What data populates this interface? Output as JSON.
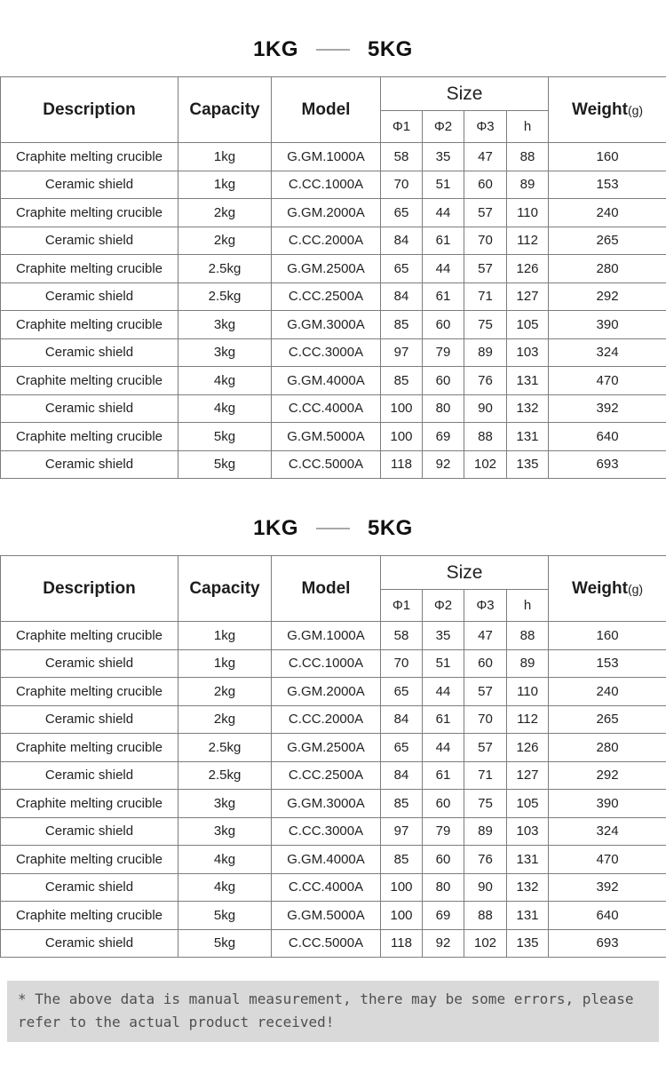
{
  "titles": {
    "range_start": "1KG",
    "range_end": "5KG"
  },
  "table": {
    "headers": {
      "description": "Description",
      "capacity": "Capacity",
      "model": "Model",
      "size": "Size",
      "weight": "Weight",
      "weight_unit": "(g)",
      "size_sub": [
        "Φ1",
        "Φ2",
        "Φ3",
        "h"
      ]
    },
    "column_names": [
      "cell-description",
      "cell-capacity",
      "cell-model",
      "cell-phi1",
      "cell-phi2",
      "cell-phi3",
      "cell-h",
      "cell-weight"
    ],
    "rows": [
      [
        "Craphite melting crucible",
        "1kg",
        "G.GM.1000A",
        "58",
        "35",
        "47",
        "88",
        "160"
      ],
      [
        "Ceramic shield",
        "1kg",
        "C.CC.1000A",
        "70",
        "51",
        "60",
        "89",
        "153"
      ],
      [
        "Craphite melting crucible",
        "2kg",
        "G.GM.2000A",
        "65",
        "44",
        "57",
        "110",
        "240"
      ],
      [
        "Ceramic shield",
        "2kg",
        "C.CC.2000A",
        "84",
        "61",
        "70",
        "112",
        "265"
      ],
      [
        "Craphite melting crucible",
        "2.5kg",
        "G.GM.2500A",
        "65",
        "44",
        "57",
        "126",
        "280"
      ],
      [
        "Ceramic shield",
        "2.5kg",
        "C.CC.2500A",
        "84",
        "61",
        "71",
        "127",
        "292"
      ],
      [
        "Craphite melting crucible",
        "3kg",
        "G.GM.3000A",
        "85",
        "60",
        "75",
        "105",
        "390"
      ],
      [
        "Ceramic shield",
        "3kg",
        "C.CC.3000A",
        "97",
        "79",
        "89",
        "103",
        "324"
      ],
      [
        "Craphite melting crucible",
        "4kg",
        "G.GM.4000A",
        "85",
        "60",
        "76",
        "131",
        "470"
      ],
      [
        "Ceramic shield",
        "4kg",
        "C.CC.4000A",
        "100",
        "80",
        "90",
        "132",
        "392"
      ],
      [
        "Craphite melting crucible",
        "5kg",
        "G.GM.5000A",
        "100",
        "69",
        "88",
        "131",
        "640"
      ],
      [
        "Ceramic shield",
        "5kg",
        "C.CC.5000A",
        "118",
        "92",
        "102",
        "135",
        "693"
      ]
    ]
  },
  "footnote": "* The above data is manual measurement, there may be some errors, please refer to the actual product received!",
  "colors": {
    "border": "#7d7d7d",
    "footnote_bg": "#d9d9d9",
    "footnote_text": "#4f4f4f"
  }
}
